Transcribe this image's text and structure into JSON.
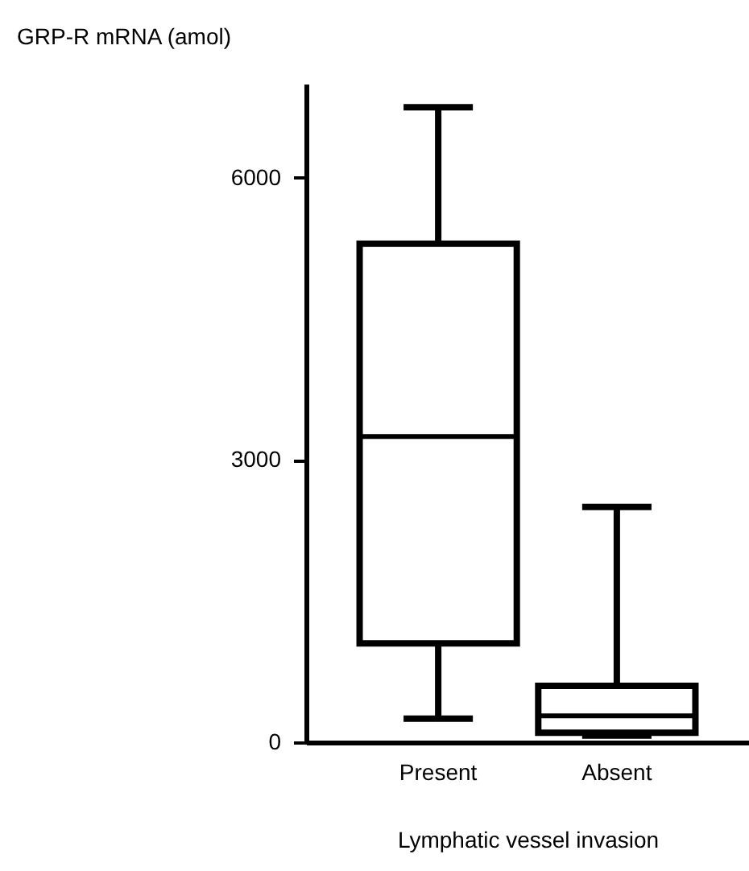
{
  "chart_data": {
    "type": "box",
    "ylabel": "GRP-R mRNA (amol)",
    "xlabel": "Lymphatic vessel invasion",
    "categories": [
      "Present",
      "Absent"
    ],
    "boxes": [
      {
        "low": 250,
        "q1": 1050,
        "median": 3250,
        "q3": 5300,
        "high": 6750
      },
      {
        "low": 70,
        "q1": 100,
        "median": 280,
        "q3": 600,
        "high": 2500
      }
    ],
    "ylim": [
      0,
      7000
    ],
    "yticks": [
      0,
      3000,
      6000
    ]
  }
}
